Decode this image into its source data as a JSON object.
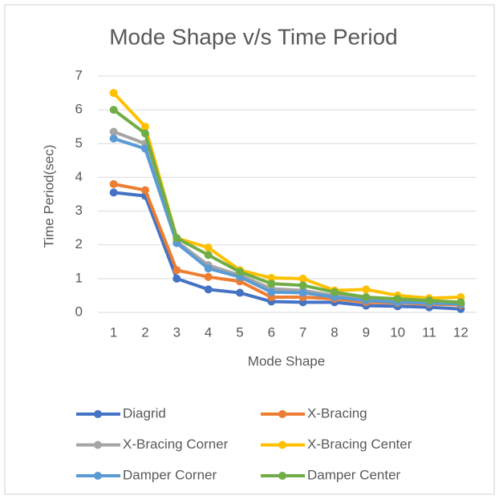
{
  "chart_data": {
    "type": "line",
    "title": "Mode Shape v/s Time Period",
    "x_label": "Mode Shape",
    "y_label": "Time Period(sec)",
    "categories": [
      "1",
      "2",
      "3",
      "4",
      "5",
      "6",
      "7",
      "8",
      "9",
      "10",
      "11",
      "12"
    ],
    "series": [
      {
        "name": "Diagrid",
        "color": "#4472c4",
        "values": [
          3.55,
          3.45,
          1.0,
          0.68,
          0.58,
          0.32,
          0.3,
          0.3,
          0.2,
          0.18,
          0.15,
          0.1
        ]
      },
      {
        "name": "X-Bracing",
        "color": "#ed7d31",
        "values": [
          3.8,
          3.62,
          1.25,
          1.05,
          0.92,
          0.45,
          0.45,
          0.4,
          0.3,
          0.28,
          0.25,
          0.22
        ]
      },
      {
        "name": "X-Bracing Corner",
        "color": "#a5a5a5",
        "values": [
          5.35,
          5.0,
          2.1,
          1.4,
          1.1,
          0.7,
          0.65,
          0.5,
          0.4,
          0.35,
          0.3,
          0.28
        ]
      },
      {
        "name": "X-Bracing Center",
        "color": "#ffc000",
        "values": [
          6.5,
          5.5,
          2.2,
          1.92,
          1.25,
          1.02,
          1.0,
          0.65,
          0.68,
          0.5,
          0.42,
          0.45
        ]
      },
      {
        "name": "Damper Corner",
        "color": "#5b9bd5",
        "values": [
          5.15,
          4.85,
          2.05,
          1.3,
          1.05,
          0.6,
          0.58,
          0.45,
          0.35,
          0.3,
          0.28,
          0.25
        ]
      },
      {
        "name": "Damper Center",
        "color": "#70ad47",
        "values": [
          6.0,
          5.3,
          2.2,
          1.7,
          1.2,
          0.85,
          0.8,
          0.6,
          0.45,
          0.4,
          0.35,
          0.3
        ]
      }
    ],
    "ylim": [
      0,
      7
    ],
    "yticks": [
      0,
      1,
      2,
      3,
      4,
      5,
      6,
      7
    ],
    "grid": true,
    "legend": "bottom"
  }
}
